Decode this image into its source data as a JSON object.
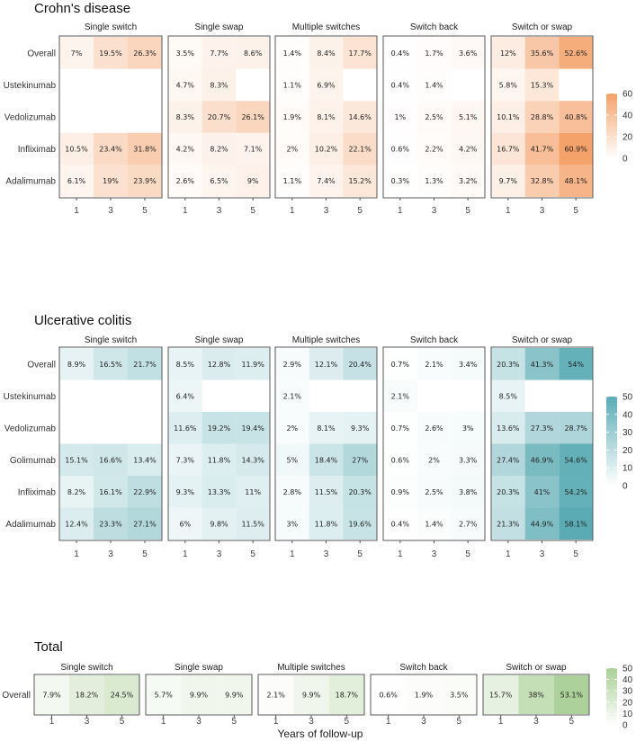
{
  "chart_data": {
    "type": "heatmap",
    "xlabel": "Years of follow-up",
    "x": [
      "1",
      "3",
      "5"
    ],
    "facets": [
      "Single switch",
      "Single swap",
      "Multiple switches",
      "Switch back",
      "Switch or swap"
    ],
    "sections": [
      {
        "title": "Crohn's disease",
        "palette": "orange",
        "colors": {
          "low": "#ffffff",
          "high": "#f4a16a"
        },
        "scale_max": 60,
        "legend_ticks": [
          "60",
          "40",
          "20",
          "0"
        ],
        "rows": [
          "Overall",
          "Ustekinumab",
          "Vedolizumab",
          "Infliximab",
          "Adalimumab"
        ],
        "values": [
          [
            [
              7,
              19.5,
              26.3
            ],
            [
              3.5,
              7.7,
              8.6
            ],
            [
              1.4,
              8.4,
              17.7
            ],
            [
              0.4,
              1.7,
              3.6
            ],
            [
              12,
              35.6,
              52.6
            ]
          ],
          [
            [
              null,
              null,
              null
            ],
            [
              4.7,
              8.3,
              null
            ],
            [
              1.1,
              6.9,
              null
            ],
            [
              0.4,
              1.4,
              null
            ],
            [
              5.8,
              15.3,
              null
            ]
          ],
          [
            [
              null,
              null,
              null
            ],
            [
              8.3,
              20.7,
              26.1
            ],
            [
              1.9,
              8.1,
              14.6
            ],
            [
              1,
              2.5,
              5.1
            ],
            [
              10.1,
              28.8,
              40.8
            ]
          ],
          [
            [
              10.5,
              23.4,
              31.8
            ],
            [
              4.2,
              8.2,
              7.1
            ],
            [
              2,
              10.2,
              22.1
            ],
            [
              0.6,
              2.2,
              4.2
            ],
            [
              16.7,
              41.7,
              60.9
            ]
          ],
          [
            [
              6.1,
              19,
              23.9
            ],
            [
              2.6,
              6.5,
              9
            ],
            [
              1.1,
              7.4,
              15.2
            ],
            [
              0.3,
              1.3,
              3.2
            ],
            [
              9.7,
              32.8,
              48.1
            ]
          ]
        ],
        "labels": [
          [
            [
              "7%",
              "19.5%",
              "26.3%"
            ],
            [
              "3.5%",
              "7.7%",
              "8.6%"
            ],
            [
              "1.4%",
              "8.4%",
              "17.7%"
            ],
            [
              "0.4%",
              "1.7%",
              "3.6%"
            ],
            [
              "12%",
              "35.6%",
              "52.6%"
            ]
          ],
          [
            [
              null,
              null,
              null
            ],
            [
              "4.7%",
              "8.3%",
              null
            ],
            [
              "1.1%",
              "6.9%",
              null
            ],
            [
              "0.4%",
              "1.4%",
              null
            ],
            [
              "5.8%",
              "15.3%",
              null
            ]
          ],
          [
            [
              null,
              null,
              null
            ],
            [
              "8.3%",
              "20.7%",
              "26.1%"
            ],
            [
              "1.9%",
              "8.1%",
              "14.6%"
            ],
            [
              "1%",
              "2.5%",
              "5.1%"
            ],
            [
              "10.1%",
              "28.8%",
              "40.8%"
            ]
          ],
          [
            [
              "10.5%",
              "23.4%",
              "31.8%"
            ],
            [
              "4.2%",
              "8.2%",
              "7.1%"
            ],
            [
              "2%",
              "10.2%",
              "22.1%"
            ],
            [
              "0.6%",
              "2.2%",
              "4.2%"
            ],
            [
              "16.7%",
              "41.7%",
              "60.9%"
            ]
          ],
          [
            [
              "6.1%",
              "19%",
              "23.9%"
            ],
            [
              "2.6%",
              "6.5%",
              "9%"
            ],
            [
              "1.1%",
              "7.4%",
              "15.2%"
            ],
            [
              "0.3%",
              "1.3%",
              "3.2%"
            ],
            [
              "9.7%",
              "32.8%",
              "48.1%"
            ]
          ]
        ]
      },
      {
        "title": "Ulcerative colitis",
        "palette": "teal",
        "colors": {
          "low": "#ffffff",
          "high": "#5aabb4"
        },
        "scale_max": 58,
        "legend_ticks": [
          "50",
          "40",
          "30",
          "20",
          "10",
          "0"
        ],
        "rows": [
          "Overall",
          "Ustekinumab",
          "Vedolizumab",
          "Golimumab",
          "Infliximab",
          "Adalimumab"
        ],
        "values": [
          [
            [
              8.9,
              16.5,
              21.7
            ],
            [
              8.5,
              12.8,
              11.9
            ],
            [
              2.9,
              12.1,
              20.4
            ],
            [
              0.7,
              2.1,
              3.4
            ],
            [
              20.3,
              41.3,
              54
            ]
          ],
          [
            [
              null,
              null,
              null
            ],
            [
              6.4,
              null,
              null
            ],
            [
              2.1,
              null,
              null
            ],
            [
              2.1,
              null,
              null
            ],
            [
              8.5,
              null,
              null
            ]
          ],
          [
            [
              null,
              null,
              null
            ],
            [
              11.6,
              19.2,
              19.4
            ],
            [
              2,
              8.1,
              9.3
            ],
            [
              0.7,
              2.6,
              3
            ],
            [
              13.6,
              27.3,
              28.7
            ]
          ],
          [
            [
              15.1,
              16.6,
              13.4
            ],
            [
              7.3,
              11.8,
              14.3
            ],
            [
              5,
              18.4,
              27
            ],
            [
              0.6,
              2,
              3.3
            ],
            [
              27.4,
              46.9,
              54.6
            ]
          ],
          [
            [
              8.2,
              16.1,
              22.9
            ],
            [
              9.3,
              13.3,
              11
            ],
            [
              2.8,
              11.5,
              20.3
            ],
            [
              0.9,
              2.5,
              3.8
            ],
            [
              20.3,
              41,
              54.2
            ]
          ],
          [
            [
              12.4,
              23.3,
              27.1
            ],
            [
              6,
              9.8,
              11.5
            ],
            [
              3,
              11.8,
              19.6
            ],
            [
              0.4,
              1.4,
              2.7
            ],
            [
              21.3,
              44.9,
              58.1
            ]
          ]
        ],
        "labels": [
          [
            [
              "8.9%",
              "16.5%",
              "21.7%"
            ],
            [
              "8.5%",
              "12.8%",
              "11.9%"
            ],
            [
              "2.9%",
              "12.1%",
              "20.4%"
            ],
            [
              "0.7%",
              "2.1%",
              "3.4%"
            ],
            [
              "20.3%",
              "41.3%",
              "54%"
            ]
          ],
          [
            [
              null,
              null,
              null
            ],
            [
              "6.4%",
              null,
              null
            ],
            [
              "2.1%",
              null,
              null
            ],
            [
              "2.1%",
              null,
              null
            ],
            [
              "8.5%",
              null,
              null
            ]
          ],
          [
            [
              null,
              null,
              null
            ],
            [
              "11.6%",
              "19.2%",
              "19.4%"
            ],
            [
              "2%",
              "8.1%",
              "9.3%"
            ],
            [
              "0.7%",
              "2.6%",
              "3%"
            ],
            [
              "13.6%",
              "27.3%",
              "28.7%"
            ]
          ],
          [
            [
              "15.1%",
              "16.6%",
              "13.4%"
            ],
            [
              "7.3%",
              "11.8%",
              "14.3%"
            ],
            [
              "5%",
              "18.4%",
              "27%"
            ],
            [
              "0.6%",
              "2%",
              "3.3%"
            ],
            [
              "27.4%",
              "46.9%",
              "54.6%"
            ]
          ],
          [
            [
              "8.2%",
              "16.1%",
              "22.9%"
            ],
            [
              "9.3%",
              "13.3%",
              "11%"
            ],
            [
              "2.8%",
              "11.5%",
              "20.3%"
            ],
            [
              "0.9%",
              "2.5%",
              "3.8%"
            ],
            [
              "20.3%",
              "41%",
              "54.2%"
            ]
          ],
          [
            [
              "12.4%",
              "23.3%",
              "27.1%"
            ],
            [
              "6%",
              "9.8%",
              "11.5%"
            ],
            [
              "3%",
              "11.8%",
              "19.6%"
            ],
            [
              "0.4%",
              "1.4%",
              "2.7%"
            ],
            [
              "21.3%",
              "44.9%",
              "58.1%"
            ]
          ]
        ]
      },
      {
        "title": "Total",
        "palette": "green",
        "colors": {
          "low": "#ffffff",
          "high": "#a9cf96"
        },
        "scale_max": 55,
        "legend_ticks": [
          "50",
          "40",
          "30",
          "20",
          "10",
          "0"
        ],
        "rows": [
          "Overall"
        ],
        "values": [
          [
            [
              7.9,
              18.2,
              24.5
            ],
            [
              5.7,
              9.9,
              9.9
            ],
            [
              2.1,
              9.9,
              18.7
            ],
            [
              0.6,
              1.9,
              3.5
            ],
            [
              15.7,
              38,
              53.1
            ]
          ]
        ],
        "labels": [
          [
            [
              "7.9%",
              "18.2%",
              "24.5%"
            ],
            [
              "5.7%",
              "9.9%",
              "9.9%"
            ],
            [
              "2.1%",
              "9.9%",
              "18.7%"
            ],
            [
              "0.6%",
              "1.9%",
              "3.5%"
            ],
            [
              "15.7%",
              "38%",
              "53.1%"
            ]
          ]
        ]
      }
    ]
  }
}
